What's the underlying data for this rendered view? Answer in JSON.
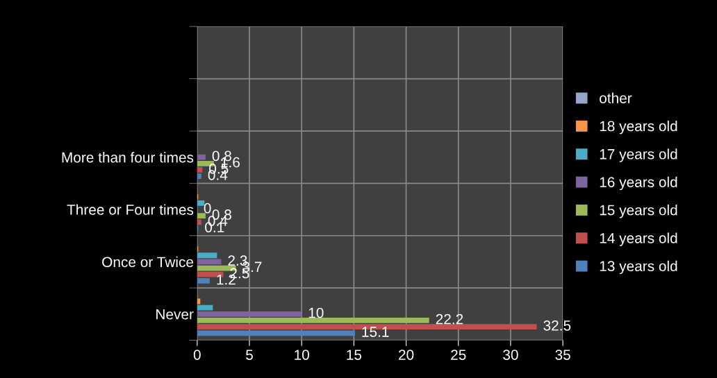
{
  "chart_data": {
    "type": "bar",
    "orientation": "horizontal",
    "categories": [
      null,
      null,
      "More than four times",
      "Three or Four times",
      "Once or Twice",
      "Never"
    ],
    "series": [
      {
        "name": "13 years old",
        "color": "#4f81bd",
        "values": [
          null,
          null,
          0.4,
          0.1,
          1.2,
          15.1
        ],
        "value_labels": [
          null,
          null,
          "0.4",
          "0.1",
          "1.2",
          "15.1"
        ]
      },
      {
        "name": "14 years old",
        "color": "#c0504d",
        "values": [
          null,
          null,
          0.5,
          0.4,
          2.5,
          32.5
        ],
        "value_labels": [
          null,
          null,
          "0.5",
          "0.4",
          "2.5",
          "32.5"
        ]
      },
      {
        "name": "15 years old",
        "color": "#9bbb59",
        "values": [
          null,
          null,
          1.6,
          0.8,
          3.7,
          22.2
        ],
        "value_labels": [
          null,
          null,
          "1.6",
          "0.8",
          "3.7",
          "22.2"
        ]
      },
      {
        "name": "16 years old",
        "color": "#8064a2",
        "values": [
          null,
          null,
          0.8,
          0,
          2.3,
          10
        ],
        "value_labels": [
          null,
          null,
          "0.8",
          "0",
          "2.3",
          "10"
        ]
      },
      {
        "name": "17 years old",
        "color": "#4bacc6",
        "values": [
          null,
          null,
          0,
          0.7,
          1.9,
          1.5
        ]
      },
      {
        "name": "18 years old",
        "color": "#f79646",
        "values": [
          null,
          null,
          0,
          0.1,
          0.1,
          0.3
        ]
      },
      {
        "name": "other",
        "color": "#95a6c8",
        "values": [
          null,
          null,
          0,
          0,
          0,
          0
        ]
      }
    ],
    "xlim": [
      0,
      35
    ],
    "xticks": [
      0,
      5,
      10,
      15,
      20,
      25,
      30,
      35
    ],
    "grid": true,
    "legend": "right"
  }
}
